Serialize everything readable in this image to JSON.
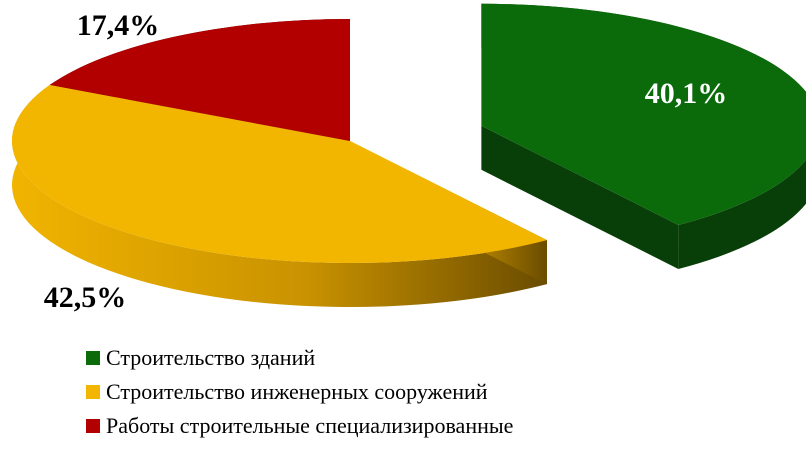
{
  "chart_data": {
    "type": "pie",
    "style": "3d-exploded",
    "categories": [
      "Строительство зданий",
      "Строительство инженерных сооружений",
      "Работы строительные специализированные"
    ],
    "values": [
      40.1,
      42.5,
      17.4
    ],
    "value_labels": [
      "40,1%",
      "42,5%",
      "17,4%"
    ],
    "colors": [
      "#0b6b0b",
      "#f2b600",
      "#b20000"
    ],
    "legend_position": "bottom"
  }
}
